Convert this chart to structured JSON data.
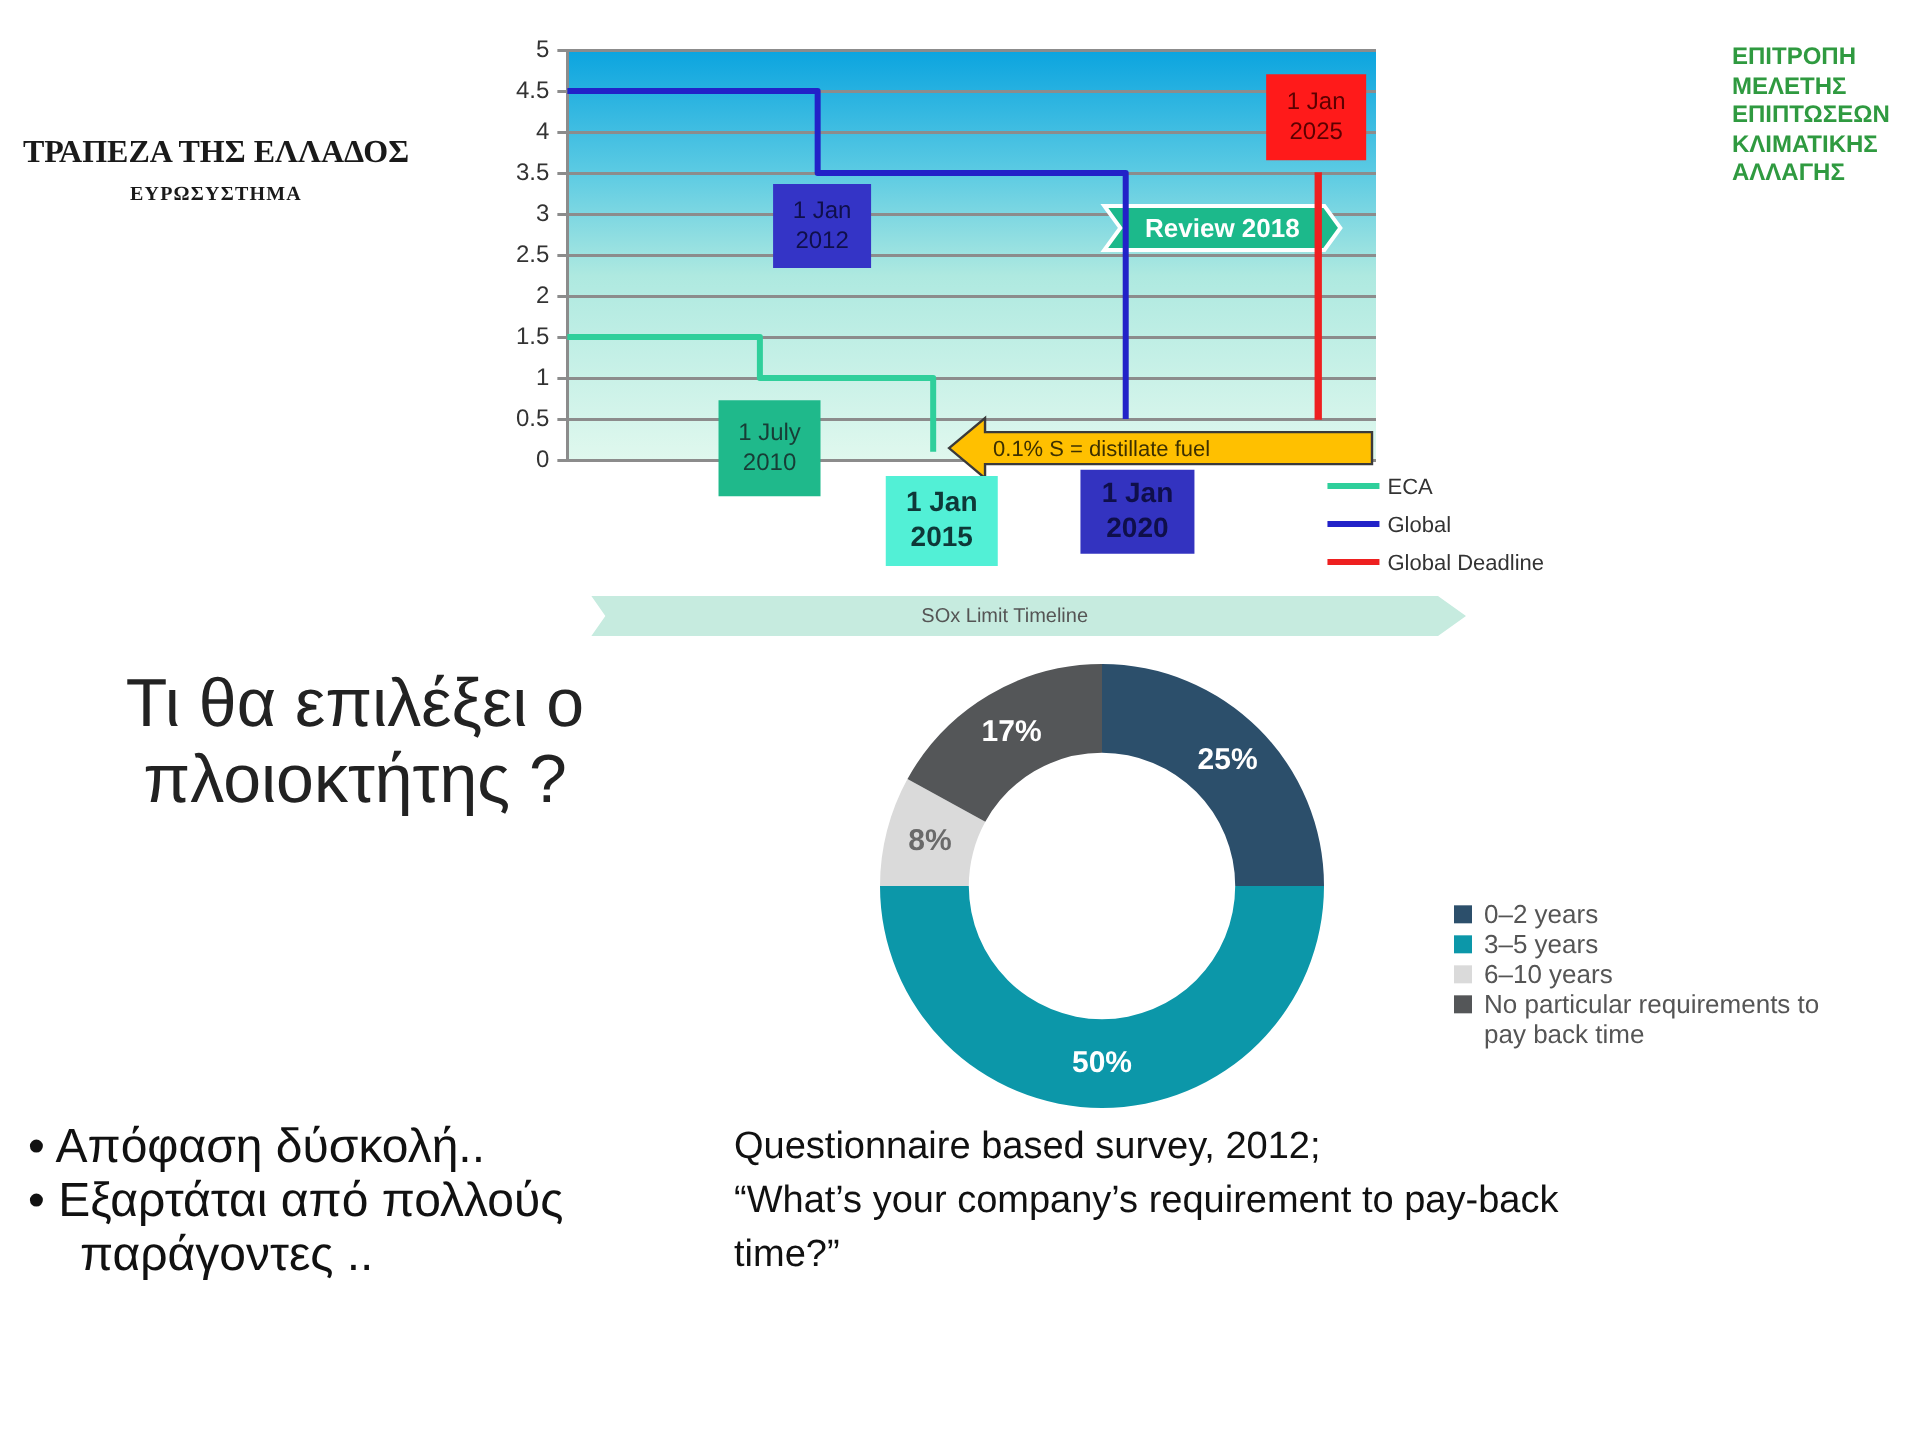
{
  "chart_data": [
    {
      "type": "other",
      "title": "ΤΡΑΠΕΖΑ ΤΗΣ ΕΛΛΑΔΟΣ",
      "subtitle": "ΕΥΡΩΣΥΣΤΗΜΑ"
    },
    {
      "type": "step",
      "xlabel": "SOx Limit Timeline",
      "ylim": [
        0,
        5
      ],
      "yticks": [
        0,
        0.5,
        1,
        1.5,
        2,
        2.5,
        3,
        3.5,
        4,
        4.5,
        5
      ],
      "tick_labels": "y",
      "grid": "y",
      "legend": "bottom right",
      "categories": [
        null,
        null,
        null,
        null,
        null,
        null,
        null,
        null,
        null,
        null,
        null,
        null,
        null,
        null,
        null,
        null,
        null,
        null,
        null,
        null,
        null,
        null,
        null,
        null,
        null,
        null,
        null,
        null,
        null,
        null,
        null,
        null,
        null,
        null,
        null,
        null,
        null,
        null,
        null,
        null,
        null,
        null,
        null
      ],
      "series": [
        {
          "name": "ECA",
          "color": "#2fcf9b",
          "values": [
            1.5,
            1.5,
            1.5,
            1.5,
            1.5,
            1.5,
            1.5,
            1.5,
            1.5,
            1.5,
            1,
            1,
            1,
            1,
            1,
            1,
            1,
            1,
            1,
            0.1,
            null,
            null,
            null,
            null,
            null,
            null,
            null,
            null,
            null,
            null,
            null,
            null,
            null,
            null,
            null,
            null,
            null,
            null,
            null,
            null,
            null,
            null,
            null
          ]
        },
        {
          "name": "Global",
          "color": "#2222c8",
          "values": [
            4.5,
            4.5,
            4.5,
            4.5,
            4.5,
            4.5,
            4.5,
            4.5,
            4.5,
            4.5,
            4.5,
            4.5,
            4.5,
            3.5,
            3.5,
            3.5,
            3.5,
            3.5,
            3.5,
            3.5,
            3.5,
            3.5,
            3.5,
            3.5,
            3.5,
            3.5,
            3.5,
            3.5,
            3.5,
            0.5,
            null,
            null,
            null,
            null,
            null,
            null,
            null,
            null,
            null,
            null,
            null,
            null,
            null
          ]
        },
        {
          "name": "Global Deadline",
          "type": "bar",
          "color": "#ee2020",
          "base": [
            null,
            null,
            null,
            null,
            null,
            null,
            null,
            null,
            null,
            null,
            null,
            null,
            null,
            null,
            null,
            null,
            null,
            null,
            null,
            null,
            null,
            null,
            null,
            null,
            null,
            null,
            null,
            null,
            null,
            null,
            null,
            null,
            null,
            null,
            null,
            null,
            null,
            null,
            null,
            0.5,
            null,
            null,
            null
          ],
          "values": [
            null,
            null,
            null,
            null,
            null,
            null,
            null,
            null,
            null,
            null,
            null,
            null,
            null,
            null,
            null,
            null,
            null,
            null,
            null,
            null,
            null,
            null,
            null,
            null,
            null,
            null,
            null,
            null,
            null,
            null,
            null,
            null,
            null,
            null,
            null,
            null,
            null,
            null,
            null,
            3,
            null,
            null,
            null
          ]
        }
      ],
      "annotations": [
        "1 July 2010",
        "1 Jan 2012",
        "1 Jan 2015",
        "Review 2018",
        "0.1% S = distillate fuel",
        "1 Jan 2020",
        "1 Jan 2025"
      ]
    },
    {
      "type": "other",
      "title": "ΕΠΙΤΡΟΠΗ ΜΕΛΕΤΗΣ ΕΠΙΠΤΩΣΕΩΝ ΚΛΙΜΑΤΙΚΗΣ ΑΛΛΑΓΗΣ"
    },
    {
      "type": "donut",
      "title": "Τι θα επιλέξει ο πλοιοκτήτης ?",
      "categories": [
        "0–2 years",
        "3–5 years",
        "6–10 years",
        "No particular requirements to pay back time"
      ],
      "values": [
        25,
        50,
        8,
        17
      ],
      "colors": [
        "#2c4f6b",
        "#0c97a9",
        "#dadada",
        "#545658"
      ],
      "value_labels": [
        "25%",
        "50%",
        "8%",
        "17%"
      ],
      "legend": "right",
      "annotations": [
        "• Απόφαση δύσκολή..",
        "• Εξαρτάται από πολλούς παράγοντες ..",
        "Questionnaire based survey, 2012;",
        "“What’s your company’s requirement to pay-back time?”"
      ]
    }
  ]
}
